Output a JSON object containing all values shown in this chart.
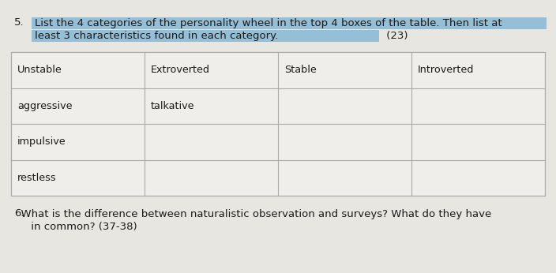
{
  "bg_color": "#e8e6e0",
  "table_bg": "#f0eeea",
  "highlight_color": "#7ab3d4",
  "table_border_color": "#aaaaaa",
  "text_color": "#1a1a1a",
  "font_size_q": 9.5,
  "font_size_table": 9.2,
  "q5_number": "5.",
  "q5_line1_highlighted": "List the 4 categories of the personality wheel in the top 4 boxes of the table. Then list at",
  "q5_line2_highlighted": "least 3 characteristics found in each category.",
  "q5_line2_normal": " (23)",
  "table_header": [
    "Unstable",
    "Extroverted",
    "Stable",
    "Introverted"
  ],
  "table_rows": [
    [
      "aggressive",
      "talkative",
      "",
      ""
    ],
    [
      "impulsive",
      "",
      "",
      ""
    ],
    [
      "restless",
      "",
      "",
      ""
    ]
  ],
  "q6_number": "6.",
  "q6_line1": "  What is the difference between naturalistic observation and surveys? What do they have",
  "q6_line2": "     in common? (37-38)"
}
